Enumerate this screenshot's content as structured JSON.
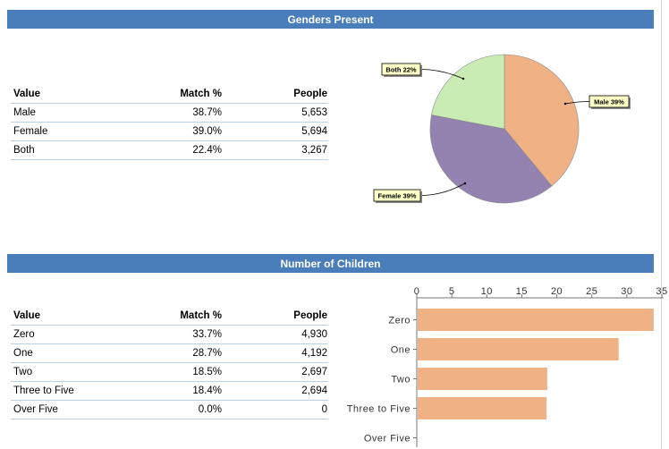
{
  "sections": {
    "genders": {
      "title": "Genders Present",
      "columns": [
        "Value",
        "Match %",
        "People"
      ],
      "rows": [
        {
          "value": "Male",
          "match": "38.7%",
          "people": "5,653"
        },
        {
          "value": "Female",
          "match": "39.0%",
          "people": "5,694"
        },
        {
          "value": "Both",
          "match": "22.4%",
          "people": "3,267"
        }
      ]
    },
    "children": {
      "title": "Number of Children",
      "columns": [
        "Value",
        "Match %",
        "People"
      ],
      "rows": [
        {
          "value": "Zero",
          "match": "33.7%",
          "people": "4,930"
        },
        {
          "value": "One",
          "match": "28.7%",
          "people": "4,192"
        },
        {
          "value": "Two",
          "match": "18.5%",
          "people": "2,697"
        },
        {
          "value": "Three to Five",
          "match": "18.4%",
          "people": "2,694"
        },
        {
          "value": "Over Five",
          "match": "0.0%",
          "people": "0"
        }
      ]
    }
  },
  "colors": {
    "header_bg": "#4a7ebb",
    "male": "#f0b184",
    "female": "#9482b0",
    "both": "#c8ecb4",
    "bar": "#f0b184",
    "callout_bg": "#ffffc8"
  },
  "chart_data": [
    {
      "type": "pie",
      "slices": [
        {
          "name": "Male",
          "value": 39,
          "label": "Male 39%"
        },
        {
          "name": "Female",
          "value": 39,
          "label": "Female 39%"
        },
        {
          "name": "Both",
          "value": 22,
          "label": "Both 22%"
        }
      ]
    },
    {
      "type": "bar",
      "orientation": "horizontal",
      "categories": [
        "Zero",
        "One",
        "Two",
        "Three to Five",
        "Over Five"
      ],
      "values": [
        33.7,
        28.7,
        18.5,
        18.4,
        0.0
      ],
      "xlim": [
        0,
        35
      ],
      "ticks": [
        "0",
        "5",
        "10",
        "15",
        "20",
        "25",
        "30",
        "35"
      ],
      "axis_position": "top",
      "grid": false
    }
  ]
}
